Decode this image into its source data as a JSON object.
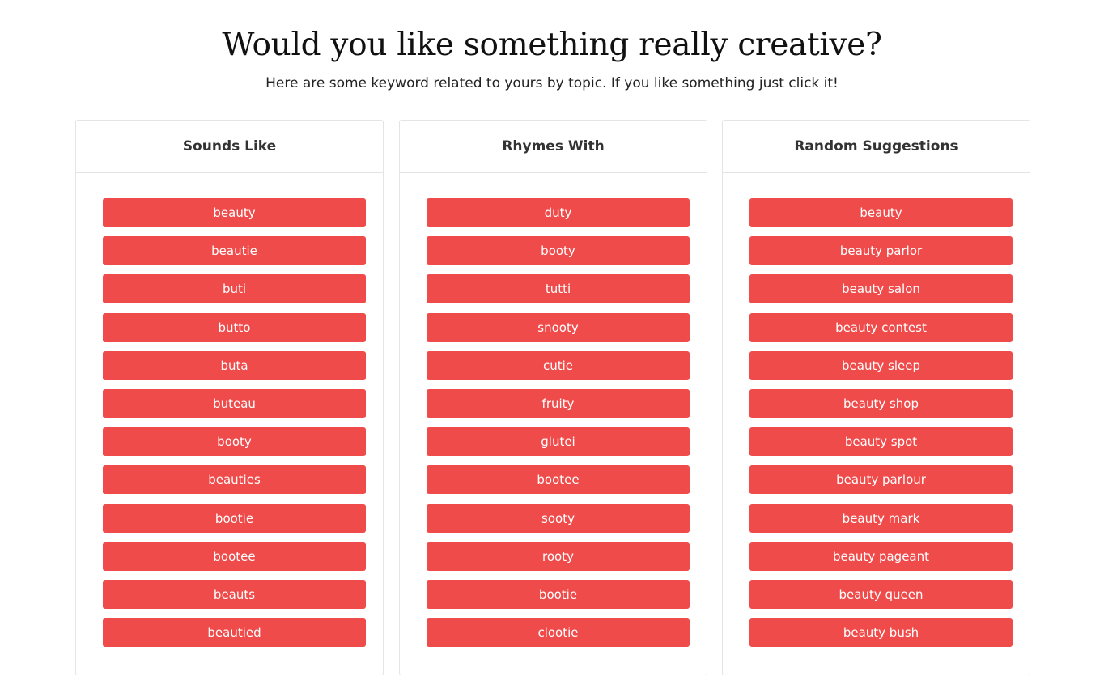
{
  "header": {
    "title": "Would you like something really creative?",
    "subtitle": "Here are some keyword related to yours by topic. If you like something just click it!"
  },
  "colors": {
    "button_bg": "#ef4b4a",
    "button_text": "#ffffff",
    "card_border": "#e4e4e4"
  },
  "columns": [
    {
      "title": "Sounds Like",
      "items": [
        "beauty",
        "beautie",
        "buti",
        "butto",
        "buta",
        "buteau",
        "booty",
        "beauties",
        "bootie",
        "bootee",
        "beauts",
        "beautied"
      ]
    },
    {
      "title": "Rhymes With",
      "items": [
        "duty",
        "booty",
        "tutti",
        "snooty",
        "cutie",
        "fruity",
        "glutei",
        "bootee",
        "sooty",
        "rooty",
        "bootie",
        "clootie"
      ]
    },
    {
      "title": "Random Suggestions",
      "items": [
        "beauty",
        "beauty parlor",
        "beauty salon",
        "beauty contest",
        "beauty sleep",
        "beauty shop",
        "beauty spot",
        "beauty parlour",
        "beauty mark",
        "beauty pageant",
        "beauty queen",
        "beauty bush"
      ]
    }
  ]
}
